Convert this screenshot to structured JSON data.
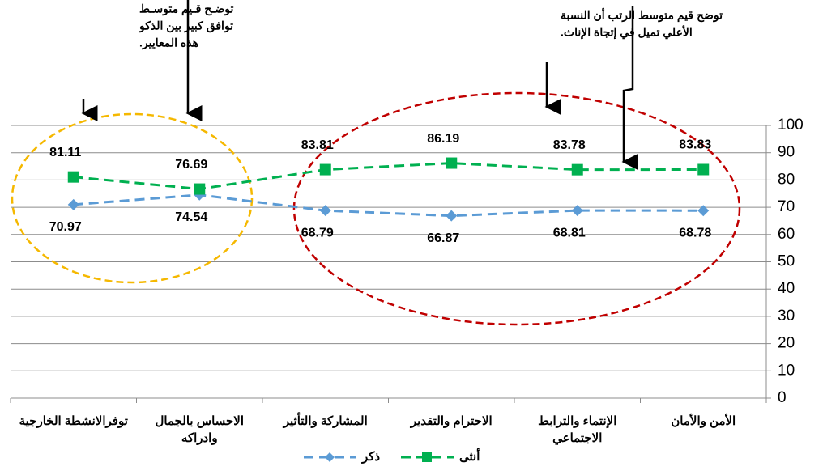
{
  "chart_data": {
    "type": "line",
    "categories": [
      "توفرالانشطة الخارجية",
      "الاحساس بالجمال وادراكه",
      "المشاركة والتأثير",
      "الاحترام والتقدير",
      "الإنتماء والترابط الاجتماعي",
      "الأمن والأمان"
    ],
    "series": [
      {
        "name": "ذكر",
        "color": "#5b9bd5",
        "marker": "diamond",
        "values": [
          70.97,
          74.54,
          68.79,
          66.87,
          68.81,
          68.78
        ]
      },
      {
        "name": "أنثى",
        "color": "#00b050",
        "marker": "square",
        "values": [
          81.11,
          76.69,
          83.81,
          86.19,
          83.78,
          83.83
        ]
      }
    ],
    "ylim": [
      0,
      100
    ],
    "yticks": [
      0,
      10,
      20,
      30,
      40,
      50,
      60,
      70,
      80,
      90,
      100
    ],
    "grid": true,
    "annotations": [
      [
        "توضـح قـيم متوسـط",
        "توافق كبير بين الذكو",
        "هذه المعايير."
      ],
      [
        "توضح  قيم متوسط الرتب أن النسبة",
        "الأعلي تميل في إتجاة الإناث."
      ]
    ]
  }
}
